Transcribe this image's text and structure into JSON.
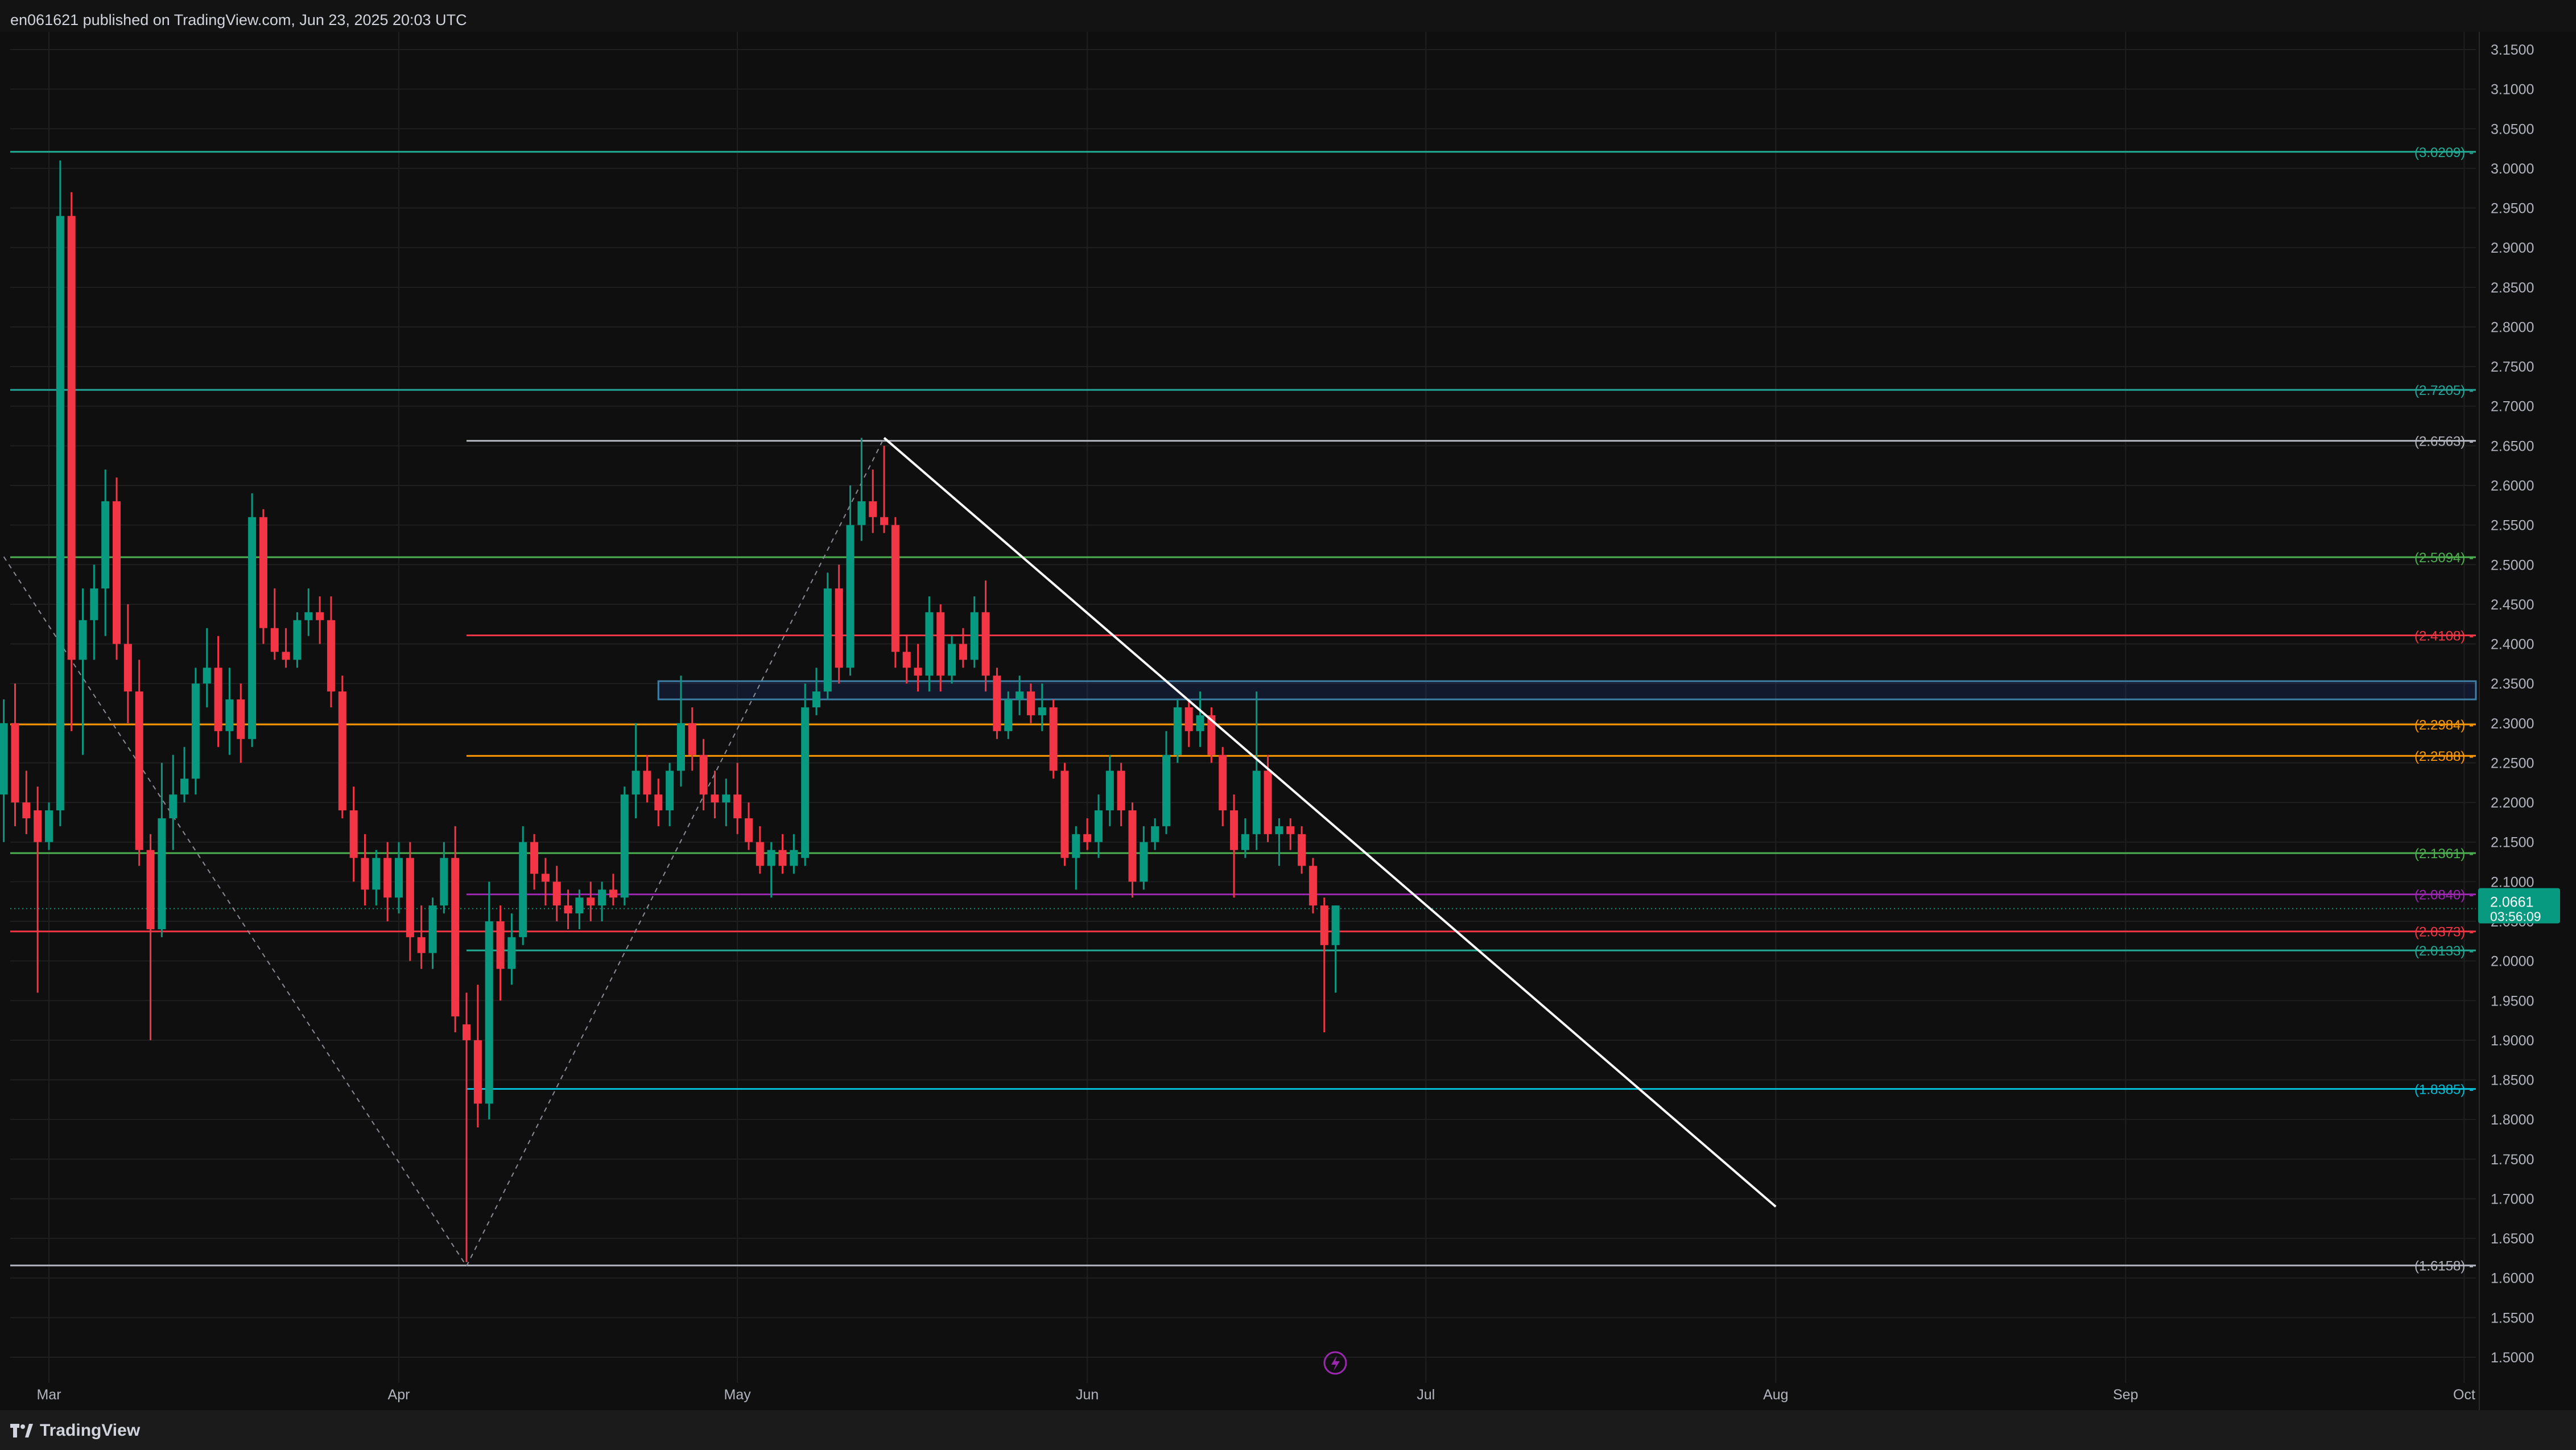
{
  "header": {
    "published_text": "en061621 published on TradingView.com, Jun 23, 2025 20:03 UTC"
  },
  "footer": {
    "brand": "TradingView"
  },
  "colors": {
    "background": "#131313",
    "up": "#089981",
    "down": "#f23645",
    "grid": "#1f1f1f",
    "axis_text": "#b2b5be",
    "trendline": "#ffffff",
    "price_badge": "#089981"
  },
  "chart_data": {
    "type": "candlestick",
    "title": "",
    "y_axis": {
      "ylim": [
        1.45,
        3.2
      ],
      "tick_labels": [
        "3.1500",
        "3.1000",
        "3.0500",
        "3.0000",
        "2.9500",
        "2.9000",
        "2.8500",
        "2.8000",
        "2.7500",
        "2.7000",
        "2.6500",
        "2.6000",
        "2.5500",
        "2.5000",
        "2.4500",
        "2.4000",
        "2.3500",
        "2.3000",
        "2.2500",
        "2.2000",
        "2.1500",
        "2.1000",
        "2.0500",
        "2.0000",
        "1.9500",
        "1.9000",
        "1.8500",
        "1.8000",
        "1.7500",
        "1.7000",
        "1.6500",
        "1.6000",
        "1.5500",
        "1.5000"
      ],
      "tick_values": [
        3.15,
        3.1,
        3.05,
        3.0,
        2.95,
        2.9,
        2.85,
        2.8,
        2.75,
        2.7,
        2.65,
        2.6,
        2.55,
        2.5,
        2.45,
        2.4,
        2.35,
        2.3,
        2.25,
        2.2,
        2.15,
        2.1,
        2.05,
        2.0,
        1.95,
        1.9,
        1.85,
        1.8,
        1.75,
        1.7,
        1.65,
        1.6,
        1.55,
        1.5
      ]
    },
    "x_axis": {
      "start": "2025-02-25",
      "end": "2025-10-01",
      "tick_labels": [
        {
          "label": "Mar",
          "date": "2025-03-01"
        },
        {
          "label": "Apr",
          "date": "2025-04-01"
        },
        {
          "label": "May",
          "date": "2025-05-01"
        },
        {
          "label": "Jun",
          "date": "2025-06-01"
        },
        {
          "label": "Jul",
          "date": "2025-07-01"
        },
        {
          "label": "Aug",
          "date": "2025-08-01"
        },
        {
          "label": "Sep",
          "date": "2025-09-01"
        },
        {
          "label": "Oct",
          "date": "2025-10-01"
        }
      ]
    },
    "grid": true,
    "current_price": {
      "price": 2.0661,
      "label": "2.0661",
      "countdown": "03:56:09"
    },
    "levels": [
      {
        "price": 3.0209,
        "label": "(3.0209)",
        "color": "#22ab94",
        "from": "2025-02-25"
      },
      {
        "price": 2.7205,
        "label": "(2.7205)",
        "color": "#26a69a",
        "from": "2025-02-25"
      },
      {
        "price": 2.6563,
        "label": "(2.6563)",
        "color": "#b2b5be",
        "from": "2025-04-07"
      },
      {
        "price": 2.5094,
        "label": "(2.5094)",
        "color": "#4caf50",
        "from": "2025-02-25"
      },
      {
        "price": 2.4108,
        "label": "(2.4108)",
        "color": "#f23645",
        "from": "2025-04-07"
      },
      {
        "price": 2.2984,
        "label": "(2.2984)",
        "color": "#ff9800",
        "from": "2025-02-25"
      },
      {
        "price": 2.2588,
        "label": "(2.2588)",
        "color": "#ff9800",
        "from": "2025-04-07"
      },
      {
        "price": 2.1361,
        "label": "(2.1361)",
        "color": "#4caf50",
        "from": "2025-02-25"
      },
      {
        "price": 2.084,
        "label": "(2.0840)",
        "color": "#9c27b0",
        "from": "2025-04-07"
      },
      {
        "price": 2.0373,
        "label": "(2.0373)",
        "color": "#f23645",
        "from": "2025-02-25"
      },
      {
        "price": 2.0133,
        "label": "(2.0133)",
        "color": "#22ab94",
        "from": "2025-04-07"
      },
      {
        "price": 1.8385,
        "label": "(1.8385)",
        "color": "#00bcd4",
        "from": "2025-04-07"
      },
      {
        "price": 1.6158,
        "label": "(1.6158)",
        "color": "#b2b5be",
        "from": "2025-02-25"
      }
    ],
    "zone": {
      "top": 2.353,
      "bottom": 2.33,
      "from": "2025-04-24",
      "color": "#2962ff"
    },
    "trendline": {
      "from": {
        "date": "2025-05-14",
        "price": 2.66
      },
      "to": {
        "date": "2025-08-01",
        "price": 1.69
      }
    },
    "fib_dashes": [
      {
        "from": {
          "date": "2025-02-25",
          "price": 2.51
        },
        "to": {
          "date": "2025-04-07",
          "price": 1.615
        }
      },
      {
        "from": {
          "date": "2025-04-07",
          "price": 1.615
        },
        "to": {
          "date": "2025-05-14",
          "price": 2.66
        }
      }
    ],
    "candles": [
      {
        "date": "2025-02-25",
        "o": 2.21,
        "h": 2.33,
        "l": 2.15,
        "c": 2.3
      },
      {
        "date": "2025-02-26",
        "o": 2.3,
        "h": 2.35,
        "l": 2.17,
        "c": 2.2
      },
      {
        "date": "2025-02-27",
        "o": 2.2,
        "h": 2.24,
        "l": 2.16,
        "c": 2.18
      },
      {
        "date": "2025-02-28",
        "o": 2.19,
        "h": 2.22,
        "l": 1.96,
        "c": 2.15
      },
      {
        "date": "2025-03-01",
        "o": 2.15,
        "h": 2.2,
        "l": 2.14,
        "c": 2.19
      },
      {
        "date": "2025-03-02",
        "o": 2.19,
        "h": 3.01,
        "l": 2.17,
        "c": 2.94
      },
      {
        "date": "2025-03-03",
        "o": 2.94,
        "h": 2.97,
        "l": 2.29,
        "c": 2.38
      },
      {
        "date": "2025-03-04",
        "o": 2.38,
        "h": 2.47,
        "l": 2.26,
        "c": 2.43
      },
      {
        "date": "2025-03-05",
        "o": 2.43,
        "h": 2.5,
        "l": 2.38,
        "c": 2.47
      },
      {
        "date": "2025-03-06",
        "o": 2.47,
        "h": 2.62,
        "l": 2.41,
        "c": 2.58
      },
      {
        "date": "2025-03-07",
        "o": 2.58,
        "h": 2.61,
        "l": 2.38,
        "c": 2.4
      },
      {
        "date": "2025-03-08",
        "o": 2.4,
        "h": 2.45,
        "l": 2.3,
        "c": 2.34
      },
      {
        "date": "2025-03-09",
        "o": 2.34,
        "h": 2.38,
        "l": 2.12,
        "c": 2.14
      },
      {
        "date": "2025-03-10",
        "o": 2.14,
        "h": 2.16,
        "l": 1.9,
        "c": 2.04
      },
      {
        "date": "2025-03-11",
        "o": 2.04,
        "h": 2.25,
        "l": 2.03,
        "c": 2.18
      },
      {
        "date": "2025-03-12",
        "o": 2.18,
        "h": 2.26,
        "l": 2.14,
        "c": 2.21
      },
      {
        "date": "2025-03-13",
        "o": 2.21,
        "h": 2.27,
        "l": 2.2,
        "c": 2.23
      },
      {
        "date": "2025-03-14",
        "o": 2.23,
        "h": 2.37,
        "l": 2.21,
        "c": 2.35
      },
      {
        "date": "2025-03-15",
        "o": 2.35,
        "h": 2.42,
        "l": 2.32,
        "c": 2.37
      },
      {
        "date": "2025-03-16",
        "o": 2.37,
        "h": 2.41,
        "l": 2.27,
        "c": 2.29
      },
      {
        "date": "2025-03-17",
        "o": 2.29,
        "h": 2.37,
        "l": 2.26,
        "c": 2.33
      },
      {
        "date": "2025-03-18",
        "o": 2.33,
        "h": 2.35,
        "l": 2.25,
        "c": 2.28
      },
      {
        "date": "2025-03-19",
        "o": 2.28,
        "h": 2.59,
        "l": 2.27,
        "c": 2.56
      },
      {
        "date": "2025-03-20",
        "o": 2.56,
        "h": 2.57,
        "l": 2.4,
        "c": 2.42
      },
      {
        "date": "2025-03-21",
        "o": 2.42,
        "h": 2.47,
        "l": 2.38,
        "c": 2.39
      },
      {
        "date": "2025-03-22",
        "o": 2.39,
        "h": 2.42,
        "l": 2.37,
        "c": 2.38
      },
      {
        "date": "2025-03-23",
        "o": 2.38,
        "h": 2.44,
        "l": 2.37,
        "c": 2.43
      },
      {
        "date": "2025-03-24",
        "o": 2.43,
        "h": 2.47,
        "l": 2.41,
        "c": 2.44
      },
      {
        "date": "2025-03-25",
        "o": 2.44,
        "h": 2.46,
        "l": 2.4,
        "c": 2.43
      },
      {
        "date": "2025-03-26",
        "o": 2.43,
        "h": 2.46,
        "l": 2.32,
        "c": 2.34
      },
      {
        "date": "2025-03-27",
        "o": 2.34,
        "h": 2.36,
        "l": 2.18,
        "c": 2.19
      },
      {
        "date": "2025-03-28",
        "o": 2.19,
        "h": 2.22,
        "l": 2.1,
        "c": 2.13
      },
      {
        "date": "2025-03-29",
        "o": 2.13,
        "h": 2.16,
        "l": 2.07,
        "c": 2.09
      },
      {
        "date": "2025-03-30",
        "o": 2.09,
        "h": 2.14,
        "l": 2.07,
        "c": 2.13
      },
      {
        "date": "2025-03-31",
        "o": 2.13,
        "h": 2.15,
        "l": 2.05,
        "c": 2.08
      },
      {
        "date": "2025-04-01",
        "o": 2.08,
        "h": 2.15,
        "l": 2.06,
        "c": 2.13
      },
      {
        "date": "2025-04-02",
        "o": 2.13,
        "h": 2.15,
        "l": 2.0,
        "c": 2.03
      },
      {
        "date": "2025-04-03",
        "o": 2.03,
        "h": 2.07,
        "l": 1.99,
        "c": 2.01
      },
      {
        "date": "2025-04-04",
        "o": 2.01,
        "h": 2.08,
        "l": 1.99,
        "c": 2.07
      },
      {
        "date": "2025-04-05",
        "o": 2.07,
        "h": 2.15,
        "l": 2.06,
        "c": 2.13
      },
      {
        "date": "2025-04-06",
        "o": 2.13,
        "h": 2.17,
        "l": 1.91,
        "c": 1.93
      },
      {
        "date": "2025-04-07",
        "o": 1.92,
        "h": 1.96,
        "l": 1.62,
        "c": 1.9
      },
      {
        "date": "2025-04-08",
        "o": 1.9,
        "h": 1.97,
        "l": 1.79,
        "c": 1.82
      },
      {
        "date": "2025-04-09",
        "o": 1.82,
        "h": 2.1,
        "l": 1.8,
        "c": 2.05
      },
      {
        "date": "2025-04-10",
        "o": 2.05,
        "h": 2.07,
        "l": 1.95,
        "c": 1.99
      },
      {
        "date": "2025-04-11",
        "o": 1.99,
        "h": 2.06,
        "l": 1.97,
        "c": 2.03
      },
      {
        "date": "2025-04-12",
        "o": 2.03,
        "h": 2.17,
        "l": 2.02,
        "c": 2.15
      },
      {
        "date": "2025-04-13",
        "o": 2.15,
        "h": 2.16,
        "l": 2.09,
        "c": 2.11
      },
      {
        "date": "2025-04-14",
        "o": 2.11,
        "h": 2.13,
        "l": 2.07,
        "c": 2.1
      },
      {
        "date": "2025-04-15",
        "o": 2.1,
        "h": 2.12,
        "l": 2.05,
        "c": 2.07
      },
      {
        "date": "2025-04-16",
        "o": 2.07,
        "h": 2.09,
        "l": 2.04,
        "c": 2.06
      },
      {
        "date": "2025-04-17",
        "o": 2.06,
        "h": 2.09,
        "l": 2.04,
        "c": 2.08
      },
      {
        "date": "2025-04-18",
        "o": 2.08,
        "h": 2.1,
        "l": 2.05,
        "c": 2.07
      },
      {
        "date": "2025-04-19",
        "o": 2.07,
        "h": 2.1,
        "l": 2.05,
        "c": 2.09
      },
      {
        "date": "2025-04-20",
        "o": 2.09,
        "h": 2.11,
        "l": 2.07,
        "c": 2.08
      },
      {
        "date": "2025-04-21",
        "o": 2.08,
        "h": 2.22,
        "l": 2.07,
        "c": 2.21
      },
      {
        "date": "2025-04-22",
        "o": 2.21,
        "h": 2.3,
        "l": 2.18,
        "c": 2.24
      },
      {
        "date": "2025-04-23",
        "o": 2.24,
        "h": 2.26,
        "l": 2.2,
        "c": 2.21
      },
      {
        "date": "2025-04-24",
        "o": 2.21,
        "h": 2.23,
        "l": 2.17,
        "c": 2.19
      },
      {
        "date": "2025-04-25",
        "o": 2.19,
        "h": 2.25,
        "l": 2.17,
        "c": 2.24
      },
      {
        "date": "2025-04-26",
        "o": 2.24,
        "h": 2.36,
        "l": 2.22,
        "c": 2.3
      },
      {
        "date": "2025-04-27",
        "o": 2.3,
        "h": 2.32,
        "l": 2.24,
        "c": 2.26
      },
      {
        "date": "2025-04-28",
        "o": 2.26,
        "h": 2.28,
        "l": 2.19,
        "c": 2.21
      },
      {
        "date": "2025-04-29",
        "o": 2.21,
        "h": 2.24,
        "l": 2.18,
        "c": 2.2
      },
      {
        "date": "2025-04-30",
        "o": 2.2,
        "h": 2.23,
        "l": 2.17,
        "c": 2.21
      },
      {
        "date": "2025-05-01",
        "o": 2.21,
        "h": 2.25,
        "l": 2.16,
        "c": 2.18
      },
      {
        "date": "2025-05-02",
        "o": 2.18,
        "h": 2.2,
        "l": 2.14,
        "c": 2.15
      },
      {
        "date": "2025-05-03",
        "o": 2.15,
        "h": 2.17,
        "l": 2.11,
        "c": 2.12
      },
      {
        "date": "2025-05-04",
        "o": 2.12,
        "h": 2.15,
        "l": 2.08,
        "c": 2.14
      },
      {
        "date": "2025-05-05",
        "o": 2.14,
        "h": 2.16,
        "l": 2.11,
        "c": 2.12
      },
      {
        "date": "2025-05-06",
        "o": 2.12,
        "h": 2.16,
        "l": 2.11,
        "c": 2.14
      },
      {
        "date": "2025-05-07",
        "o": 2.13,
        "h": 2.35,
        "l": 2.12,
        "c": 2.32
      },
      {
        "date": "2025-05-08",
        "o": 2.32,
        "h": 2.37,
        "l": 2.31,
        "c": 2.34
      },
      {
        "date": "2025-05-09",
        "o": 2.34,
        "h": 2.49,
        "l": 2.33,
        "c": 2.47
      },
      {
        "date": "2025-05-10",
        "o": 2.47,
        "h": 2.5,
        "l": 2.35,
        "c": 2.37
      },
      {
        "date": "2025-05-11",
        "o": 2.37,
        "h": 2.6,
        "l": 2.36,
        "c": 2.55
      },
      {
        "date": "2025-05-12",
        "o": 2.55,
        "h": 2.66,
        "l": 2.53,
        "c": 2.58
      },
      {
        "date": "2025-05-13",
        "o": 2.58,
        "h": 2.62,
        "l": 2.54,
        "c": 2.56
      },
      {
        "date": "2025-05-14",
        "o": 2.56,
        "h": 2.65,
        "l": 2.54,
        "c": 2.55
      },
      {
        "date": "2025-05-15",
        "o": 2.55,
        "h": 2.56,
        "l": 2.37,
        "c": 2.39
      },
      {
        "date": "2025-05-16",
        "o": 2.39,
        "h": 2.41,
        "l": 2.35,
        "c": 2.37
      },
      {
        "date": "2025-05-17",
        "o": 2.37,
        "h": 2.4,
        "l": 2.34,
        "c": 2.36
      },
      {
        "date": "2025-05-18",
        "o": 2.36,
        "h": 2.46,
        "l": 2.34,
        "c": 2.44
      },
      {
        "date": "2025-05-19",
        "o": 2.44,
        "h": 2.45,
        "l": 2.34,
        "c": 2.36
      },
      {
        "date": "2025-05-20",
        "o": 2.36,
        "h": 2.41,
        "l": 2.35,
        "c": 2.4
      },
      {
        "date": "2025-05-21",
        "o": 2.4,
        "h": 2.42,
        "l": 2.37,
        "c": 2.38
      },
      {
        "date": "2025-05-22",
        "o": 2.38,
        "h": 2.46,
        "l": 2.37,
        "c": 2.44
      },
      {
        "date": "2025-05-23",
        "o": 2.44,
        "h": 2.48,
        "l": 2.34,
        "c": 2.36
      },
      {
        "date": "2025-05-24",
        "o": 2.36,
        "h": 2.37,
        "l": 2.28,
        "c": 2.29
      },
      {
        "date": "2025-05-25",
        "o": 2.29,
        "h": 2.34,
        "l": 2.28,
        "c": 2.33
      },
      {
        "date": "2025-05-26",
        "o": 2.33,
        "h": 2.36,
        "l": 2.31,
        "c": 2.34
      },
      {
        "date": "2025-05-27",
        "o": 2.34,
        "h": 2.35,
        "l": 2.3,
        "c": 2.31
      },
      {
        "date": "2025-05-28",
        "o": 2.31,
        "h": 2.35,
        "l": 2.29,
        "c": 2.32
      },
      {
        "date": "2025-05-29",
        "o": 2.32,
        "h": 2.33,
        "l": 2.23,
        "c": 2.24
      },
      {
        "date": "2025-05-30",
        "o": 2.24,
        "h": 2.25,
        "l": 2.12,
        "c": 2.13
      },
      {
        "date": "2025-05-31",
        "o": 2.13,
        "h": 2.17,
        "l": 2.09,
        "c": 2.16
      },
      {
        "date": "2025-06-01",
        "o": 2.16,
        "h": 2.18,
        "l": 2.14,
        "c": 2.15
      },
      {
        "date": "2025-06-02",
        "o": 2.15,
        "h": 2.21,
        "l": 2.13,
        "c": 2.19
      },
      {
        "date": "2025-06-03",
        "o": 2.19,
        "h": 2.26,
        "l": 2.17,
        "c": 2.24
      },
      {
        "date": "2025-06-04",
        "o": 2.24,
        "h": 2.25,
        "l": 2.17,
        "c": 2.19
      },
      {
        "date": "2025-06-05",
        "o": 2.19,
        "h": 2.2,
        "l": 2.08,
        "c": 2.1
      },
      {
        "date": "2025-06-06",
        "o": 2.1,
        "h": 2.17,
        "l": 2.09,
        "c": 2.15
      },
      {
        "date": "2025-06-07",
        "o": 2.15,
        "h": 2.18,
        "l": 2.14,
        "c": 2.17
      },
      {
        "date": "2025-06-08",
        "o": 2.17,
        "h": 2.29,
        "l": 2.16,
        "c": 2.26
      },
      {
        "date": "2025-06-09",
        "o": 2.26,
        "h": 2.33,
        "l": 2.25,
        "c": 2.32
      },
      {
        "date": "2025-06-10",
        "o": 2.32,
        "h": 2.33,
        "l": 2.27,
        "c": 2.29
      },
      {
        "date": "2025-06-11",
        "o": 2.29,
        "h": 2.34,
        "l": 2.27,
        "c": 2.31
      },
      {
        "date": "2025-06-12",
        "o": 2.31,
        "h": 2.32,
        "l": 2.25,
        "c": 2.26
      },
      {
        "date": "2025-06-13",
        "o": 2.26,
        "h": 2.27,
        "l": 2.17,
        "c": 2.19
      },
      {
        "date": "2025-06-14",
        "o": 2.19,
        "h": 2.21,
        "l": 2.08,
        "c": 2.14
      },
      {
        "date": "2025-06-15",
        "o": 2.14,
        "h": 2.18,
        "l": 2.13,
        "c": 2.16
      },
      {
        "date": "2025-06-16",
        "o": 2.16,
        "h": 2.34,
        "l": 2.14,
        "c": 2.24
      },
      {
        "date": "2025-06-17",
        "o": 2.24,
        "h": 2.26,
        "l": 2.15,
        "c": 2.16
      },
      {
        "date": "2025-06-18",
        "o": 2.16,
        "h": 2.18,
        "l": 2.12,
        "c": 2.17
      },
      {
        "date": "2025-06-19",
        "o": 2.17,
        "h": 2.18,
        "l": 2.14,
        "c": 2.16
      },
      {
        "date": "2025-06-20",
        "o": 2.16,
        "h": 2.17,
        "l": 2.11,
        "c": 2.12
      },
      {
        "date": "2025-06-21",
        "o": 2.12,
        "h": 2.13,
        "l": 2.06,
        "c": 2.07
      },
      {
        "date": "2025-06-22",
        "o": 2.07,
        "h": 2.08,
        "l": 1.91,
        "c": 2.02
      },
      {
        "date": "2025-06-23",
        "o": 2.02,
        "h": 2.07,
        "l": 1.96,
        "c": 2.07
      }
    ]
  }
}
